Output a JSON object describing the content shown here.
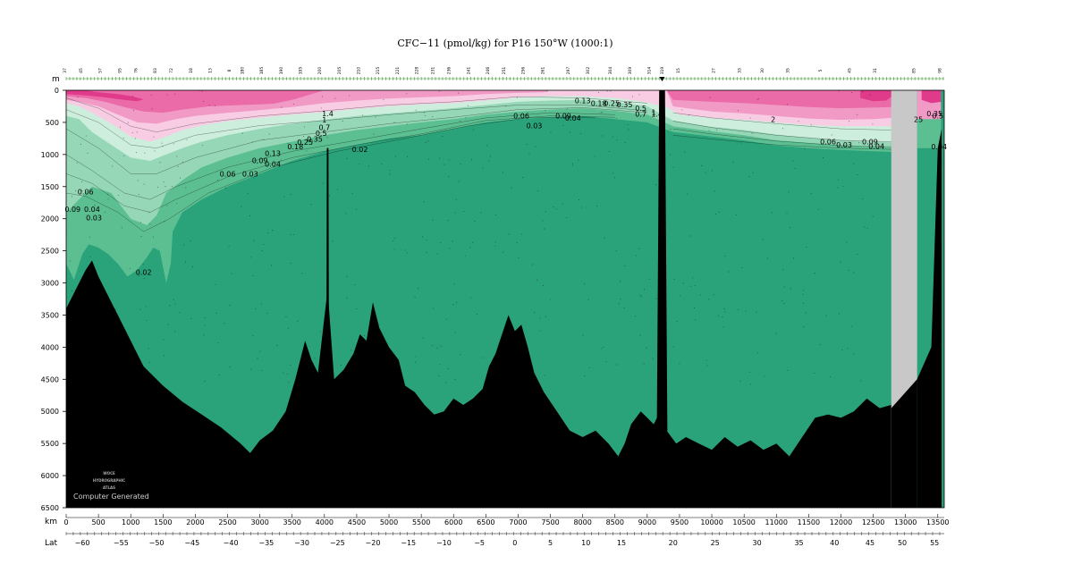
{
  "title": "CFC−11 (pmol/kg) for P16 150°W (1000:1)",
  "colors": {
    "deep": "#2aa37a",
    "green2": "#5cbf92",
    "green3": "#95d7b6",
    "green4": "#cdeedd",
    "pink1": "#f8cde4",
    "pink2": "#f19ac6",
    "pink3": "#eb6aa8",
    "pink4": "#e03a8a",
    "bathymetry": "#000000",
    "gap": "#c8c8c8"
  },
  "watermark": {
    "line1": "WOCE",
    "line2": "HYDROGRAPHIC",
    "line3": "ATLAS",
    "computer": "Computer Generated"
  },
  "chart_data": {
    "type": "section",
    "title": "CFC−11 (pmol/kg) for P16 150°W (1000:1)",
    "y_axis": {
      "name": "m",
      "range": [
        0,
        6500
      ],
      "ticks": [
        0,
        500,
        1000,
        1500,
        2000,
        2500,
        3000,
        3500,
        4000,
        4500,
        5000,
        5500,
        6000,
        6500
      ]
    },
    "x_axis": {
      "name": "km",
      "range": [
        0,
        13600
      ],
      "ticks": [
        0,
        500,
        1000,
        1500,
        2000,
        2500,
        3000,
        3500,
        4000,
        4500,
        5000,
        5500,
        6000,
        6500,
        7000,
        7500,
        8000,
        8500,
        9000,
        9500,
        10000,
        10500,
        11000,
        11500,
        12000,
        12500,
        13000,
        13500
      ]
    },
    "lat_axis": {
      "name": "Lat",
      "ticks": [
        {
          "label": "−60",
          "km": 250
        },
        {
          "label": "−55",
          "km": 850
        },
        {
          "label": "−50",
          "km": 1400
        },
        {
          "label": "−45",
          "km": 1950
        },
        {
          "label": "−40",
          "km": 2550
        },
        {
          "label": "−35",
          "km": 3100
        },
        {
          "label": "−30",
          "km": 3650
        },
        {
          "label": "−25",
          "km": 4200
        },
        {
          "label": "−20",
          "km": 4750
        },
        {
          "label": "−15",
          "km": 5300
        },
        {
          "label": "−10",
          "km": 5850
        },
        {
          "label": "−5",
          "km": 6400
        },
        {
          "label": "0",
          "km": 6950
        },
        {
          "label": "5",
          "km": 7500
        },
        {
          "label": "10",
          "km": 8050
        },
        {
          "label": "15",
          "km": 8600
        },
        {
          "label": "20",
          "km": 9400
        },
        {
          "label": "25",
          "km": 10050
        },
        {
          "label": "30",
          "km": 10700
        },
        {
          "label": "35",
          "km": 11350
        },
        {
          "label": "40",
          "km": 11900
        },
        {
          "label": "45",
          "km": 12450
        },
        {
          "label": "50",
          "km": 12950
        },
        {
          "label": "55",
          "km": 13450
        }
      ]
    },
    "stations": [
      {
        "label": "37",
        "km": 0
      },
      {
        "label": "45",
        "km": 250
      },
      {
        "label": "57",
        "km": 550
      },
      {
        "label": "95",
        "km": 850
      },
      {
        "label": "76",
        "km": 1100
      },
      {
        "label": "83",
        "km": 1400
      },
      {
        "label": "72",
        "km": 1650
      },
      {
        "label": "18",
        "km": 1950
      },
      {
        "label": "13",
        "km": 2250
      },
      {
        "label": "8",
        "km": 2550
      },
      {
        "label": "180",
        "km": 2750
      },
      {
        "label": "185",
        "km": 3050
      },
      {
        "label": "190",
        "km": 3350
      },
      {
        "label": "195",
        "km": 3650
      },
      {
        "label": "200",
        "km": 3950
      },
      {
        "label": "205",
        "km": 4250
      },
      {
        "label": "210",
        "km": 4550
      },
      {
        "label": "215",
        "km": 4850
      },
      {
        "label": "221",
        "km": 5150
      },
      {
        "label": "228",
        "km": 5450
      },
      {
        "label": "231",
        "km": 5700
      },
      {
        "label": "236",
        "km": 5950
      },
      {
        "label": "241",
        "km": 6250
      },
      {
        "label": "246",
        "km": 6550
      },
      {
        "label": "251",
        "km": 6800
      },
      {
        "label": "256",
        "km": 7100
      },
      {
        "label": "261",
        "km": 7400
      },
      {
        "label": "297",
        "km": 7800
      },
      {
        "label": "302",
        "km": 8100
      },
      {
        "label": "304",
        "km": 8450
      },
      {
        "label": "309",
        "km": 8750
      },
      {
        "label": "314",
        "km": 9050
      },
      {
        "label": "319",
        "km": 9250
      },
      {
        "label": "15",
        "km": 9500
      },
      {
        "label": "27",
        "km": 10050
      },
      {
        "label": "33",
        "km": 10450
      },
      {
        "label": "30",
        "km": 10800
      },
      {
        "label": "35",
        "km": 11200
      },
      {
        "label": "5",
        "km": 11700
      },
      {
        "label": "45",
        "km": 12150
      },
      {
        "label": "31",
        "km": 12550
      },
      {
        "label": "85",
        "km": 13150
      },
      {
        "label": "98",
        "km": 13550
      }
    ],
    "bands": [
      {
        "range": "< 0.02",
        "color": "#2aa37a"
      },
      {
        "range": "0.02 – 0.1",
        "color": "#5cbf92"
      },
      {
        "range": "0.1 – 0.3",
        "color": "#95d7b6"
      },
      {
        "range": "0.3 – 1",
        "color": "#cdeedd"
      },
      {
        "range": "1 – 1.5",
        "color": "#f8cde4"
      },
      {
        "range": "1.5 – 2",
        "color": "#f19ac6"
      },
      {
        "range": "2 – 2.5",
        "color": "#eb6aa8"
      },
      {
        "range": "> 2.5",
        "color": "#e03a8a"
      }
    ],
    "contour_labels": [
      {
        "text": "1.4",
        "km": 4050,
        "depth": 360
      },
      {
        "text": "1",
        "km": 4000,
        "depth": 460
      },
      {
        "text": "0.7",
        "km": 4000,
        "depth": 580
      },
      {
        "text": "0.5",
        "km": 3950,
        "depth": 670
      },
      {
        "text": "0.35",
        "km": 3850,
        "depth": 760
      },
      {
        "text": "0.25",
        "km": 3700,
        "depth": 810
      },
      {
        "text": "0.18",
        "km": 3550,
        "depth": 880
      },
      {
        "text": "0.13",
        "km": 3200,
        "depth": 980
      },
      {
        "text": "0.09",
        "km": 3000,
        "depth": 1090
      },
      {
        "text": "0.04",
        "km": 3200,
        "depth": 1150
      },
      {
        "text": "0.03",
        "km": 2850,
        "depth": 1300
      },
      {
        "text": "0.06",
        "km": 2500,
        "depth": 1300
      },
      {
        "text": "0.02",
        "km": 4550,
        "depth": 920
      },
      {
        "text": "0.06",
        "km": 300,
        "depth": 1580
      },
      {
        "text": "0.09",
        "km": 100,
        "depth": 1850
      },
      {
        "text": "0.04",
        "km": 400,
        "depth": 1850
      },
      {
        "text": "0.03",
        "km": 430,
        "depth": 1980
      },
      {
        "text": "0.02",
        "km": 1200,
        "depth": 2830
      },
      {
        "text": "0.06",
        "km": 7050,
        "depth": 400
      },
      {
        "text": "0.03",
        "km": 7250,
        "depth": 550
      },
      {
        "text": "0.09",
        "km": 7700,
        "depth": 400
      },
      {
        "text": "0.04",
        "km": 7850,
        "depth": 430
      },
      {
        "text": "0.13",
        "km": 8000,
        "depth": 160
      },
      {
        "text": "0.18",
        "km": 8250,
        "depth": 200
      },
      {
        "text": "0.25",
        "km": 8450,
        "depth": 200
      },
      {
        "text": "0.35",
        "km": 8650,
        "depth": 220
      },
      {
        "text": "0.5",
        "km": 8900,
        "depth": 280
      },
      {
        "text": "0.7",
        "km": 8900,
        "depth": 370
      },
      {
        "text": "1",
        "km": 9100,
        "depth": 340
      },
      {
        "text": "1.4",
        "km": 9150,
        "depth": 370
      },
      {
        "text": "2",
        "km": 10950,
        "depth": 450
      },
      {
        "text": "0.06",
        "km": 11800,
        "depth": 800
      },
      {
        "text": "0.03",
        "km": 12050,
        "depth": 850
      },
      {
        "text": "0.09",
        "km": 12450,
        "depth": 800
      },
      {
        "text": "0.04",
        "km": 12550,
        "depth": 870
      },
      {
        "text": "0.35",
        "km": 13450,
        "depth": 360
      },
      {
        "text": "0.5",
        "km": 13500,
        "depth": 400
      },
      {
        "text": "25",
        "km": 13200,
        "depth": 450
      },
      {
        "text": "0.04",
        "km": 13520,
        "depth": 880
      }
    ],
    "bathymetry": [
      [
        0,
        3400
      ],
      [
        150,
        3100
      ],
      [
        300,
        2800
      ],
      [
        400,
        2650
      ],
      [
        500,
        2900
      ],
      [
        600,
        3100
      ],
      [
        800,
        3500
      ],
      [
        1000,
        3900
      ],
      [
        1200,
        4300
      ],
      [
        1500,
        4600
      ],
      [
        1800,
        4850
      ],
      [
        2100,
        5050
      ],
      [
        2400,
        5250
      ],
      [
        2700,
        5500
      ],
      [
        2850,
        5650
      ],
      [
        3000,
        5450
      ],
      [
        3200,
        5300
      ],
      [
        3400,
        5000
      ],
      [
        3550,
        4500
      ],
      [
        3700,
        3900
      ],
      [
        3800,
        4200
      ],
      [
        3900,
        4400
      ],
      [
        4050,
        3100
      ],
      [
        4150,
        4500
      ],
      [
        4300,
        4350
      ],
      [
        4450,
        4100
      ],
      [
        4550,
        3800
      ],
      [
        4650,
        3900
      ],
      [
        4750,
        3300
      ],
      [
        4850,
        3700
      ],
      [
        5000,
        4000
      ],
      [
        5150,
        4200
      ],
      [
        5250,
        4600
      ],
      [
        5400,
        4700
      ],
      [
        5550,
        4900
      ],
      [
        5700,
        5050
      ],
      [
        5850,
        5000
      ],
      [
        6000,
        4800
      ],
      [
        6150,
        4900
      ],
      [
        6300,
        4800
      ],
      [
        6450,
        4650
      ],
      [
        6550,
        4300
      ],
      [
        6650,
        4100
      ],
      [
        6750,
        3800
      ],
      [
        6850,
        3500
      ],
      [
        6950,
        3750
      ],
      [
        7050,
        3650
      ],
      [
        7150,
        4000
      ],
      [
        7250,
        4400
      ],
      [
        7400,
        4700
      ],
      [
        7600,
        5000
      ],
      [
        7800,
        5300
      ],
      [
        8000,
        5400
      ],
      [
        8200,
        5300
      ],
      [
        8400,
        5500
      ],
      [
        8550,
        5700
      ],
      [
        8650,
        5500
      ],
      [
        8750,
        5200
      ],
      [
        8900,
        5000
      ],
      [
        9000,
        5100
      ],
      [
        9100,
        5200
      ],
      [
        9200,
        5000
      ],
      [
        9300,
        5300
      ],
      [
        9450,
        5500
      ],
      [
        9600,
        5400
      ],
      [
        9800,
        5500
      ],
      [
        10000,
        5600
      ],
      [
        10200,
        5400
      ],
      [
        10400,
        5550
      ],
      [
        10600,
        5450
      ],
      [
        10800,
        5600
      ],
      [
        11000,
        5500
      ],
      [
        11200,
        5700
      ],
      [
        11400,
        5400
      ],
      [
        11600,
        5100
      ],
      [
        11800,
        5050
      ],
      [
        12000,
        5100
      ],
      [
        12200,
        5000
      ],
      [
        12400,
        4800
      ],
      [
        12600,
        4950
      ],
      [
        12780,
        4900
      ]
    ],
    "spikes": [
      {
        "km": 4050,
        "top": 900
      },
      {
        "km": 9230,
        "top": 0
      }
    ],
    "gap": {
      "km_start": 12780,
      "km_end": 13180
    }
  }
}
